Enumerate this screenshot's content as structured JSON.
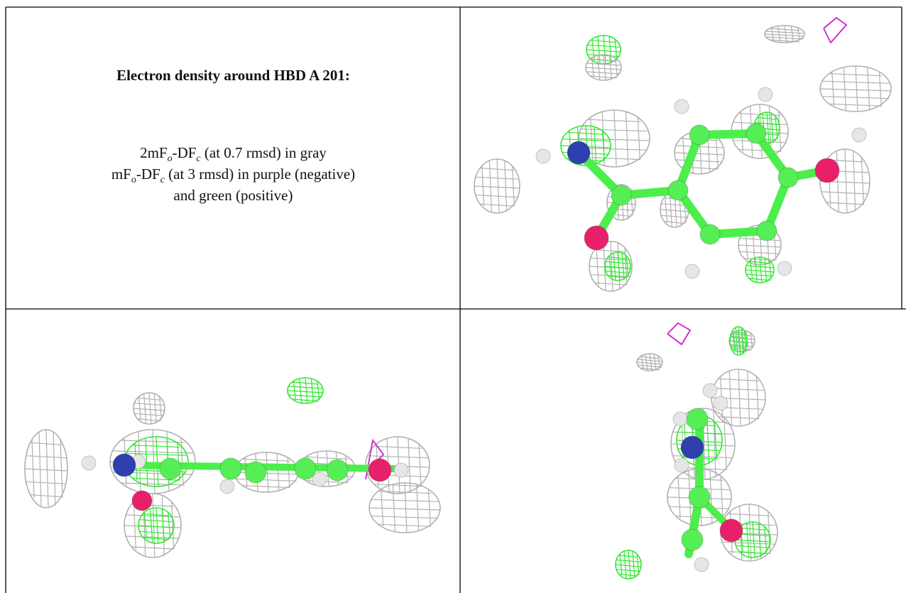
{
  "figure": {
    "title": "Electron density around HBD A 201:",
    "legend": [
      [
        "2mF",
        "o",
        "-DF",
        "c",
        " (at 0.7 rmsd) in gray"
      ],
      [
        "mF",
        "o",
        "-DF",
        "c",
        " (at 3 rmsd) in purple (negative)"
      ],
      [
        "and green (positive)"
      ]
    ]
  }
}
